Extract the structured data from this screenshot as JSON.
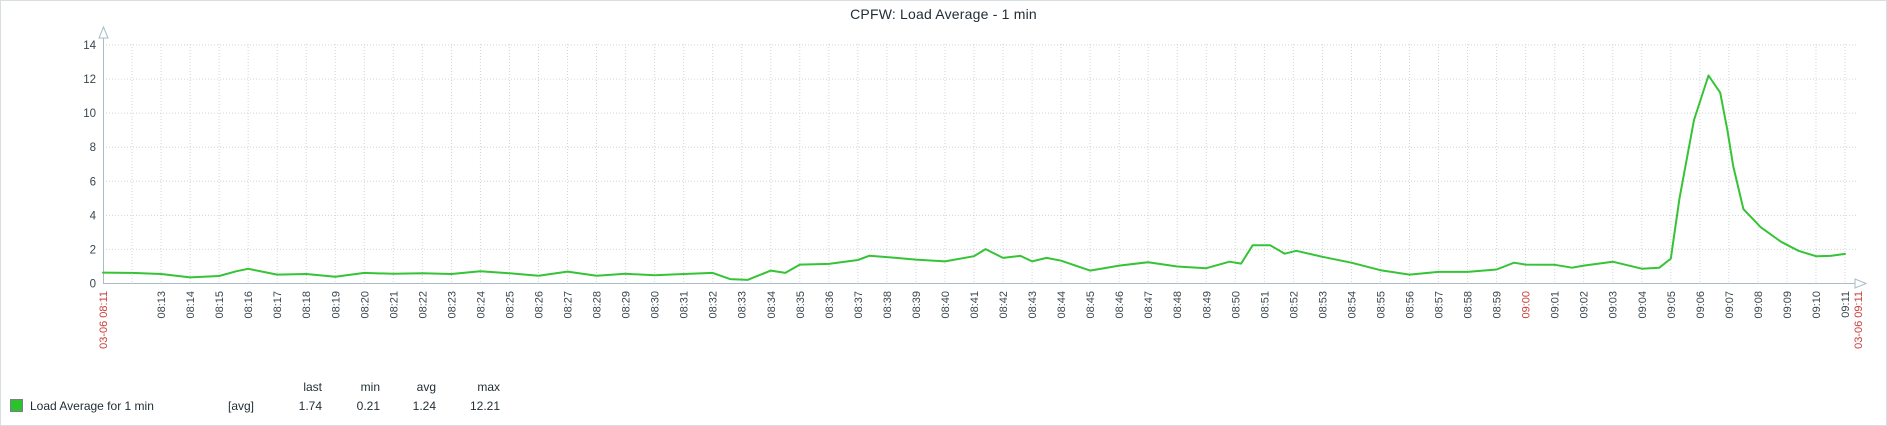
{
  "title": "CPFW: Load Average - 1 min",
  "colors": {
    "frame": "#d9dee1",
    "line": "#36c336",
    "legend_swatch": "#2dc22d",
    "swatch_border": "#768087",
    "grid": "#ccd6da",
    "axis": "#a9bcc6",
    "text": "#3a464d",
    "red_label": "#c8403c",
    "title_text": "#1f2c33"
  },
  "chart_data": {
    "type": "line",
    "title": "CPFW: Load Average - 1 min",
    "xlabel": "",
    "ylabel": "",
    "ylim": [
      0,
      14
    ],
    "y_ticks": [
      0,
      2,
      4,
      6,
      8,
      10,
      12,
      14
    ],
    "grid": true,
    "legend_position": "bottom-left",
    "x_range_minutes": 60,
    "x_start": "03-06 08:11",
    "x_end": "03-06 09:11",
    "x_ticks": [
      {
        "t": 0,
        "label": "03-06 08:11",
        "red": true
      },
      {
        "t": 2,
        "label": "08:13"
      },
      {
        "t": 3,
        "label": "08:14"
      },
      {
        "t": 4,
        "label": "08:15"
      },
      {
        "t": 5,
        "label": "08:16"
      },
      {
        "t": 6,
        "label": "08:17"
      },
      {
        "t": 7,
        "label": "08:18"
      },
      {
        "t": 8,
        "label": "08:19"
      },
      {
        "t": 9,
        "label": "08:20"
      },
      {
        "t": 10,
        "label": "08:21"
      },
      {
        "t": 11,
        "label": "08:22"
      },
      {
        "t": 12,
        "label": "08:23"
      },
      {
        "t": 13,
        "label": "08:24"
      },
      {
        "t": 14,
        "label": "08:25"
      },
      {
        "t": 15,
        "label": "08:26"
      },
      {
        "t": 16,
        "label": "08:27"
      },
      {
        "t": 17,
        "label": "08:28"
      },
      {
        "t": 18,
        "label": "08:29"
      },
      {
        "t": 19,
        "label": "08:30"
      },
      {
        "t": 20,
        "label": "08:31"
      },
      {
        "t": 21,
        "label": "08:32"
      },
      {
        "t": 22,
        "label": "08:33"
      },
      {
        "t": 23,
        "label": "08:34"
      },
      {
        "t": 24,
        "label": "08:35"
      },
      {
        "t": 25,
        "label": "08:36"
      },
      {
        "t": 26,
        "label": "08:37"
      },
      {
        "t": 27,
        "label": "08:38"
      },
      {
        "t": 28,
        "label": "08:39"
      },
      {
        "t": 29,
        "label": "08:40"
      },
      {
        "t": 30,
        "label": "08:41"
      },
      {
        "t": 31,
        "label": "08:42"
      },
      {
        "t": 32,
        "label": "08:43"
      },
      {
        "t": 33,
        "label": "08:44"
      },
      {
        "t": 34,
        "label": "08:45"
      },
      {
        "t": 35,
        "label": "08:46"
      },
      {
        "t": 36,
        "label": "08:47"
      },
      {
        "t": 37,
        "label": "08:48"
      },
      {
        "t": 38,
        "label": "08:49"
      },
      {
        "t": 39,
        "label": "08:50"
      },
      {
        "t": 40,
        "label": "08:51"
      },
      {
        "t": 41,
        "label": "08:52"
      },
      {
        "t": 42,
        "label": "08:53"
      },
      {
        "t": 43,
        "label": "08:54"
      },
      {
        "t": 44,
        "label": "08:55"
      },
      {
        "t": 45,
        "label": "08:56"
      },
      {
        "t": 46,
        "label": "08:57"
      },
      {
        "t": 47,
        "label": "08:58"
      },
      {
        "t": 48,
        "label": "08:59"
      },
      {
        "t": 49,
        "label": "09:00",
        "red": true
      },
      {
        "t": 50,
        "label": "09:01"
      },
      {
        "t": 51,
        "label": "09:02"
      },
      {
        "t": 52,
        "label": "09:03"
      },
      {
        "t": 53,
        "label": "09:04"
      },
      {
        "t": 54,
        "label": "09:05"
      },
      {
        "t": 55,
        "label": "09:06"
      },
      {
        "t": 56,
        "label": "09:07"
      },
      {
        "t": 57,
        "label": "09:08"
      },
      {
        "t": 58,
        "label": "09:09"
      },
      {
        "t": 59,
        "label": "09:10"
      },
      {
        "t": 60,
        "label": "09:11"
      },
      {
        "t": 60.45,
        "label": "03-06 09:11",
        "red": true
      }
    ],
    "series": [
      {
        "name": "Load Average for 1 min",
        "function": "[avg]",
        "color": "#36c336",
        "stats": {
          "last": 1.74,
          "min": 0.21,
          "avg": 1.24,
          "max": 12.21
        },
        "points": [
          [
            0,
            0.64
          ],
          [
            1,
            0.62
          ],
          [
            2,
            0.56
          ],
          [
            3,
            0.36
          ],
          [
            4,
            0.44
          ],
          [
            4.6,
            0.72
          ],
          [
            5,
            0.86
          ],
          [
            6,
            0.52
          ],
          [
            7,
            0.56
          ],
          [
            8,
            0.4
          ],
          [
            9,
            0.62
          ],
          [
            10,
            0.57
          ],
          [
            11,
            0.6
          ],
          [
            12,
            0.56
          ],
          [
            13,
            0.72
          ],
          [
            14,
            0.6
          ],
          [
            15,
            0.46
          ],
          [
            16,
            0.7
          ],
          [
            17,
            0.45
          ],
          [
            18,
            0.57
          ],
          [
            19,
            0.48
          ],
          [
            20,
            0.56
          ],
          [
            21,
            0.62
          ],
          [
            21.6,
            0.26
          ],
          [
            22.2,
            0.21
          ],
          [
            23,
            0.76
          ],
          [
            23.5,
            0.62
          ],
          [
            24,
            1.11
          ],
          [
            25,
            1.15
          ],
          [
            26,
            1.38
          ],
          [
            26.4,
            1.63
          ],
          [
            27,
            1.55
          ],
          [
            28,
            1.4
          ],
          [
            29,
            1.3
          ],
          [
            30,
            1.6
          ],
          [
            30.4,
            2.02
          ],
          [
            31,
            1.5
          ],
          [
            31.6,
            1.62
          ],
          [
            32,
            1.3
          ],
          [
            32.5,
            1.5
          ],
          [
            33,
            1.34
          ],
          [
            34,
            0.76
          ],
          [
            35,
            1.05
          ],
          [
            36,
            1.25
          ],
          [
            37,
            1.0
          ],
          [
            38,
            0.9
          ],
          [
            38.8,
            1.28
          ],
          [
            39.2,
            1.17
          ],
          [
            39.6,
            2.25
          ],
          [
            40.2,
            2.25
          ],
          [
            40.7,
            1.75
          ],
          [
            41.1,
            1.92
          ],
          [
            42,
            1.57
          ],
          [
            43,
            1.22
          ],
          [
            44,
            0.78
          ],
          [
            45,
            0.52
          ],
          [
            46,
            0.68
          ],
          [
            47,
            0.68
          ],
          [
            48,
            0.82
          ],
          [
            48.6,
            1.22
          ],
          [
            49,
            1.11
          ],
          [
            50,
            1.1
          ],
          [
            50.6,
            0.93
          ],
          [
            51,
            1.05
          ],
          [
            52,
            1.28
          ],
          [
            53,
            0.87
          ],
          [
            53.6,
            0.92
          ],
          [
            54,
            1.46
          ],
          [
            54.3,
            5.0
          ],
          [
            54.8,
            9.6
          ],
          [
            55.3,
            12.21
          ],
          [
            55.7,
            11.2
          ],
          [
            55.95,
            9.0
          ],
          [
            56.15,
            6.9
          ],
          [
            56.5,
            4.37
          ],
          [
            57.1,
            3.3
          ],
          [
            57.8,
            2.45
          ],
          [
            58.4,
            1.92
          ],
          [
            59,
            1.6
          ],
          [
            59.5,
            1.62
          ],
          [
            60,
            1.74
          ]
        ]
      }
    ]
  },
  "legend": {
    "series_label": "Load Average for 1 min",
    "function_label": "[avg]",
    "stats_headers": [
      "last",
      "min",
      "avg",
      "max"
    ],
    "stats_values": [
      "1.74",
      "0.21",
      "1.24",
      "12.21"
    ]
  }
}
